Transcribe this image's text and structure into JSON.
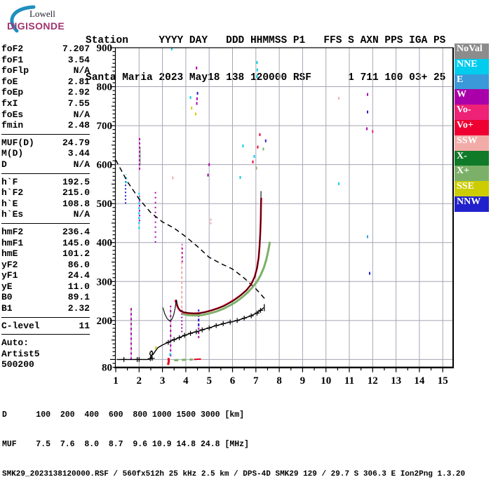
{
  "logo": {
    "top": "Lowell",
    "bottom": "DIGISONDE",
    "arc_color": "#1F8FBF",
    "brand_color": "#A2336E"
  },
  "header": {
    "line1": "Station     YYYY DAY   DDD HHMMSS P1   FFS S AXN PPS IGA PS",
    "line2": "Santa Maria 2023 May18 138 120000 RSF      1 711 100 03+ 25"
  },
  "left_panel": {
    "rows": [
      {
        "label": "foF2",
        "value": "7.207"
      },
      {
        "label": "foF1",
        "value": "3.54"
      },
      {
        "label": "foFlp",
        "value": "N/A"
      },
      {
        "label": "foE",
        "value": "2.81"
      },
      {
        "label": "foEp",
        "value": "2.92"
      },
      {
        "label": "fxI",
        "value": "7.55"
      },
      {
        "label": "foEs",
        "value": "N/A"
      },
      {
        "label": "fmin",
        "value": "2.48"
      },
      {
        "rule": true
      },
      {
        "label": "MUF(D)",
        "value": "24.79"
      },
      {
        "label": "M(D)",
        "value": "3.44"
      },
      {
        "label": "D",
        "value": "N/A"
      },
      {
        "rule": true
      },
      {
        "label": "h`F",
        "value": "192.5"
      },
      {
        "label": "h`F2",
        "value": "215.0"
      },
      {
        "label": "h`E",
        "value": "108.8"
      },
      {
        "label": "h`Es",
        "value": "N/A"
      },
      {
        "rule": true
      },
      {
        "label": "hmF2",
        "value": "236.4"
      },
      {
        "label": "hmF1",
        "value": "145.0"
      },
      {
        "label": "hmE",
        "value": "101.2"
      },
      {
        "label": "yF2",
        "value": "86.0"
      },
      {
        "label": "yF1",
        "value": "24.4"
      },
      {
        "label": "yE",
        "value": "11.0"
      },
      {
        "label": "B0",
        "value": "89.1"
      },
      {
        "label": "B1",
        "value": "2.32"
      },
      {
        "rule": true
      },
      {
        "label": "C-level",
        "value": "11"
      },
      {
        "rule": true
      },
      {
        "text": "Auto:"
      },
      {
        "text": "Artist5"
      },
      {
        "text": "500200"
      }
    ]
  },
  "legend": {
    "items": [
      {
        "label": "NoVal",
        "color": "#8C8C8C"
      },
      {
        "label": "NNE",
        "color": "#00CCEE"
      },
      {
        "label": "E",
        "color": "#3A99D9"
      },
      {
        "label": "W",
        "color": "#AA00AA"
      },
      {
        "label": "Vo-",
        "color": "#EE2277"
      },
      {
        "label": "Vo+",
        "color": "#EE0033"
      },
      {
        "label": "SSW",
        "color": "#F2ACA8"
      },
      {
        "label": "X-",
        "color": "#0F7A28"
      },
      {
        "label": "X+",
        "color": "#7CB068"
      },
      {
        "label": "SSE",
        "color": "#CCCC00"
      },
      {
        "label": "NNW",
        "color": "#2222CC"
      }
    ]
  },
  "chart_data": {
    "type": "line",
    "title": "Digisonde ionogram Santa Maria 2023 May18 138 120000",
    "xlabel": "[MHz]",
    "ylabel": "[km]",
    "xlim": [
      1,
      15
    ],
    "ylim": [
      80,
      900
    ],
    "grid": true,
    "x_ticks": [
      1,
      2,
      3,
      4,
      5,
      6,
      7,
      8,
      9,
      10,
      11,
      12,
      13,
      14,
      15
    ],
    "y_ticks": [
      900,
      800,
      700,
      600,
      500,
      400,
      300,
      200,
      80
    ],
    "grid_color": "#A5A5B5",
    "series": [
      {
        "name": "muf-transmission-curve",
        "color": "#000000",
        "width": 1.5,
        "dash": "7 5",
        "points": [
          [
            1.0,
            612
          ],
          [
            1.5,
            556
          ],
          [
            2.0,
            512
          ],
          [
            2.5,
            477
          ],
          [
            3.0,
            453
          ],
          [
            3.5,
            437
          ],
          [
            4.0,
            415
          ],
          [
            4.5,
            390
          ],
          [
            5.0,
            362
          ],
          [
            5.5,
            346
          ],
          [
            6.0,
            332
          ],
          [
            6.5,
            309
          ],
          [
            7.0,
            281
          ],
          [
            7.2,
            268
          ],
          [
            7.45,
            251
          ]
        ]
      },
      {
        "name": "x-trace-green",
        "color": "#7CB068",
        "width": 3,
        "points": [
          [
            3.85,
            217
          ],
          [
            4.1,
            214
          ],
          [
            4.4,
            213
          ],
          [
            4.7,
            214
          ],
          [
            5.0,
            218
          ],
          [
            5.3,
            223
          ],
          [
            5.6,
            230
          ],
          [
            5.9,
            239
          ],
          [
            6.15,
            248
          ],
          [
            6.4,
            259
          ],
          [
            6.65,
            272
          ],
          [
            6.85,
            285
          ],
          [
            7.05,
            300
          ],
          [
            7.2,
            316
          ],
          [
            7.33,
            334
          ],
          [
            7.44,
            355
          ],
          [
            7.52,
            376
          ],
          [
            7.58,
            395
          ],
          [
            7.6,
            402
          ]
        ]
      },
      {
        "name": "x-trace-green-e-region",
        "color": "#7CB068",
        "width": 3,
        "dash": "6 5",
        "points": [
          [
            3.5,
            98
          ],
          [
            4.3,
            100
          ]
        ]
      },
      {
        "name": "o-trace-red-e-region",
        "color": "#E60026",
        "width": 3,
        "points": [
          [
            3.24,
            86
          ],
          [
            3.27,
            95
          ],
          [
            3.26,
            104
          ]
        ]
      },
      {
        "name": "o-trace-red-es",
        "color": "#E60026",
        "width": 2,
        "points": [
          [
            4.35,
            100
          ],
          [
            4.65,
            101
          ]
        ]
      },
      {
        "name": "o-trace-red",
        "color": "#E60026",
        "width": 2.6,
        "points": [
          [
            3.55,
            253
          ],
          [
            3.6,
            242
          ],
          [
            3.67,
            232
          ],
          [
            3.76,
            225
          ],
          [
            3.9,
            221
          ],
          [
            4.1,
            219
          ],
          [
            4.35,
            218
          ],
          [
            4.6,
            219
          ],
          [
            4.85,
            222
          ],
          [
            5.1,
            226
          ],
          [
            5.35,
            231
          ],
          [
            5.6,
            237
          ],
          [
            5.85,
            245
          ],
          [
            6.1,
            254
          ],
          [
            6.35,
            265
          ],
          [
            6.6,
            278
          ],
          [
            6.8,
            293
          ],
          [
            6.95,
            312
          ],
          [
            7.05,
            335
          ],
          [
            7.12,
            362
          ],
          [
            7.16,
            392
          ],
          [
            7.19,
            425
          ],
          [
            7.21,
            462
          ],
          [
            7.22,
            495
          ],
          [
            7.23,
            515
          ]
        ]
      },
      {
        "name": "artist-fitted-trace",
        "color": "#000000",
        "width": 1.1,
        "points": [
          [
            3.02,
            233
          ],
          [
            3.1,
            217
          ],
          [
            3.2,
            205
          ],
          [
            3.3,
            199
          ],
          [
            3.4,
            203
          ],
          [
            3.48,
            214
          ],
          [
            3.54,
            231
          ],
          [
            3.58,
            246
          ],
          [
            3.6,
            253
          ],
          [
            3.63,
            243
          ],
          [
            3.7,
            230
          ],
          [
            3.8,
            224
          ],
          [
            3.95,
            221
          ],
          [
            4.2,
            219
          ],
          [
            4.5,
            218
          ],
          [
            4.8,
            221
          ],
          [
            5.1,
            226
          ],
          [
            5.4,
            232
          ],
          [
            5.7,
            239
          ],
          [
            6.0,
            249
          ],
          [
            6.3,
            262
          ],
          [
            6.6,
            278
          ],
          [
            6.8,
            293
          ],
          [
            6.95,
            312
          ],
          [
            7.05,
            335
          ],
          [
            7.12,
            362
          ],
          [
            7.16,
            392
          ],
          [
            7.19,
            425
          ],
          [
            7.21,
            462
          ],
          [
            7.22,
            532
          ]
        ]
      },
      {
        "name": "true-height-profile",
        "color": "#000000",
        "width": 1.4,
        "points": [
          [
            1.05,
            100
          ],
          [
            1.5,
            100
          ],
          [
            2.0,
            100
          ],
          [
            2.35,
            100
          ],
          [
            2.45,
            101
          ],
          [
            2.52,
            106
          ],
          [
            2.56,
            112
          ],
          [
            2.58,
            118
          ],
          [
            2.54,
            122
          ],
          [
            2.48,
            119
          ],
          [
            2.46,
            114
          ],
          [
            2.5,
            110
          ],
          [
            2.6,
            113
          ],
          [
            2.7,
            122
          ],
          [
            2.8,
            130
          ],
          [
            3.0,
            137
          ],
          [
            3.25,
            144
          ],
          [
            3.5,
            151
          ],
          [
            3.75,
            157
          ],
          [
            4.0,
            163
          ],
          [
            4.25,
            168
          ],
          [
            4.5,
            172
          ],
          [
            4.75,
            177
          ],
          [
            5.0,
            181
          ],
          [
            5.25,
            186
          ],
          [
            5.5,
            190
          ],
          [
            5.75,
            194
          ],
          [
            6.0,
            197
          ],
          [
            6.25,
            201
          ],
          [
            6.5,
            206
          ],
          [
            6.75,
            211
          ],
          [
            7.0,
            218
          ],
          [
            7.15,
            224
          ],
          [
            7.28,
            230
          ],
          [
            7.33,
            233
          ]
        ]
      }
    ],
    "profile_markers": [
      [
        1.35,
        100
      ],
      [
        1.92,
        100
      ],
      [
        2.0,
        100
      ],
      [
        2.48,
        102
      ],
      [
        2.56,
        103
      ],
      [
        3.25,
        144
      ],
      [
        3.5,
        151
      ],
      [
        3.72,
        156
      ],
      [
        3.95,
        162
      ],
      [
        4.2,
        167
      ],
      [
        4.45,
        171
      ],
      [
        4.7,
        176
      ],
      [
        5.0,
        181
      ],
      [
        5.3,
        187
      ],
      [
        5.6,
        192
      ],
      [
        5.9,
        196
      ],
      [
        6.2,
        200
      ],
      [
        6.5,
        206
      ],
      [
        6.8,
        212
      ],
      [
        7.05,
        219
      ],
      [
        7.2,
        226
      ]
    ],
    "profile_end_cap": {
      "f": 7.36,
      "h1": 224,
      "h2": 242
    },
    "rfi_lines": [
      {
        "f": 1.42,
        "h1": 500,
        "h2": 560,
        "color": "#2222CC",
        "dash": "2 3",
        "w": 2
      },
      {
        "f": 1.44,
        "h1": 552,
        "h2": 575,
        "color": "#00CCEE",
        "dash": "3 3",
        "w": 2
      },
      {
        "f": 1.66,
        "h1": 100,
        "h2": 233,
        "color": "#999999",
        "dash": "1 0",
        "w": 1
      },
      {
        "f": 1.66,
        "h1": 100,
        "h2": 233,
        "color": "#AA00AA",
        "dash": "3 4",
        "w": 2
      },
      {
        "f": 2.02,
        "h1": 587,
        "h2": 668,
        "color": "#AA00AA",
        "dash": "3 3",
        "w": 2
      },
      {
        "f": 2.05,
        "h1": 598,
        "h2": 645,
        "color": "#888888",
        "dash": "1 0",
        "w": 1
      },
      {
        "f": 2.0,
        "h1": 435,
        "h2": 528,
        "color": "#00CCEE",
        "dash": "3 4",
        "w": 2
      },
      {
        "f": 2.02,
        "h1": 455,
        "h2": 520,
        "color": "#AA00AA",
        "dash": "2 5",
        "w": 2
      },
      {
        "f": 2.7,
        "h1": 400,
        "h2": 535,
        "color": "#AA00AA",
        "dash": "2 5",
        "w": 2
      },
      {
        "f": 3.35,
        "h1": 120,
        "h2": 232,
        "color": "#999999",
        "dash": "1 0",
        "w": 1
      },
      {
        "f": 3.35,
        "h1": 108,
        "h2": 238,
        "color": "#AA00AA",
        "dash": "3 4",
        "w": 2
      },
      {
        "f": 3.83,
        "h1": 231,
        "h2": 397,
        "color": "#F2ACA8",
        "dash": "4 3",
        "w": 2
      },
      {
        "f": 3.85,
        "h1": 350,
        "h2": 395,
        "color": "#AA00AA",
        "dash": "2 4",
        "w": 2
      },
      {
        "f": 3.83,
        "h1": 170,
        "h2": 231,
        "color": "#AA00AA",
        "dash": "2 3",
        "w": 2
      },
      {
        "f": 4.55,
        "h1": 155,
        "h2": 215,
        "color": "#AA00AA",
        "dash": "3 3",
        "w": 2
      },
      {
        "f": 4.55,
        "h1": 185,
        "h2": 228,
        "color": "#2222CC",
        "dash": "4 3",
        "w": 2
      },
      {
        "f": 5.07,
        "h1": 447,
        "h2": 464,
        "color": "#F2ACA8",
        "dash": "3 2",
        "w": 2
      }
    ],
    "dots": [
      [
        3.4,
        897,
        "#00CCEE"
      ],
      [
        4.46,
        848,
        "#AA00AA"
      ],
      [
        7.05,
        862,
        "#00CCEE"
      ],
      [
        7.06,
        843,
        "#00CCEE"
      ],
      [
        7.05,
        826,
        "#00CCEE"
      ],
      [
        4.5,
        783,
        "#2222CC"
      ],
      [
        4.48,
        769,
        "#AA00AA"
      ],
      [
        4.2,
        772,
        "#00CCEE"
      ],
      [
        4.25,
        745,
        "#CCCC00"
      ],
      [
        4.47,
        757,
        "#AA00AA"
      ],
      [
        4.42,
        730,
        "#CCCC00"
      ],
      [
        7.17,
        677,
        "#EE0033"
      ],
      [
        7.42,
        661,
        "#2222CC"
      ],
      [
        6.45,
        648,
        "#00CCEE"
      ],
      [
        7.08,
        645,
        "#EE0033"
      ],
      [
        7.32,
        640,
        "#7CB068"
      ],
      [
        6.93,
        621,
        "#00CCEE"
      ],
      [
        6.87,
        607,
        "#EE0033"
      ],
      [
        5.0,
        600,
        "#AA00AA"
      ],
      [
        7.02,
        591,
        "#7CB068"
      ],
      [
        4.95,
        573,
        "#AA00AA"
      ],
      [
        6.33,
        567,
        "#00CCEE"
      ],
      [
        3.44,
        566,
        "#F2ACA8"
      ],
      [
        10.55,
        770,
        "#F2ACA8"
      ],
      [
        11.78,
        780,
        "#AA00AA"
      ],
      [
        11.78,
        735,
        "#2222CC"
      ],
      [
        11.75,
        692,
        "#AA00AA"
      ],
      [
        12.0,
        685,
        "#EE2277"
      ],
      [
        10.55,
        551,
        "#00CCEE"
      ],
      [
        11.78,
        415,
        "#3A99D9"
      ],
      [
        11.87,
        321,
        "#2222CC"
      ],
      [
        3.33,
        113,
        "#00CCEE"
      ],
      [
        2.72,
        130,
        "#CCCC00"
      ]
    ]
  },
  "footer": {
    "d_row": "D      100  200  400  600  800 1000 1500 3000 [km]",
    "muf_row": "MUF    7.5  7.6  8.0  8.7  9.6 10.9 14.8 24.8 [MHz]",
    "status": "SMK29_2023138120000.RSF / 560fx512h 25 kHz 2.5 km / DPS-4D SMK29 129 / 29.7 S 306.3 E Ion2Png 1.3.20"
  }
}
